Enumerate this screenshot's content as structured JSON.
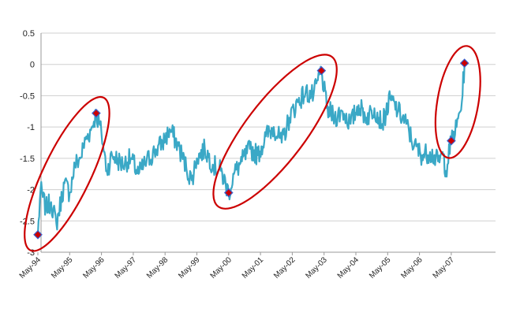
{
  "chart_data": {
    "type": "line",
    "title": "",
    "xlabel": "",
    "ylabel": "",
    "ylim": [
      -3,
      0.5
    ],
    "y_ticks": [
      "0.5",
      "0",
      "-0.5",
      "-1",
      "-1.5",
      "-2",
      "-2.5",
      "-3"
    ],
    "y_tick_values": [
      0.5,
      0,
      -0.5,
      -1,
      -1.5,
      -2,
      -2.5,
      -3
    ],
    "x_tick_labels": [
      "May-94",
      "May-95",
      "May-96",
      "May-97",
      "May-98",
      "May-99",
      "May-00",
      "May-01",
      "May-02",
      "May-03",
      "May-04",
      "May-05",
      "May-06",
      "May-07"
    ],
    "grid": "horizontal",
    "legend": "none",
    "colors": {
      "line": "#3aa8c6",
      "marker_fill": "#cc0000",
      "marker_stroke": "#3a5fcd",
      "ellipse": "#cc0000",
      "grid": "#cfcfcf"
    },
    "series": [
      {
        "values_anchor": [
          [
            "1994-05",
            -2.72
          ],
          [
            "1994-06",
            -2.0
          ],
          [
            "1994-08",
            -2.3
          ],
          [
            "1994-10",
            -2.2
          ],
          [
            "1994-12",
            -2.55
          ],
          [
            "1995-03",
            -1.9
          ],
          [
            "1995-05",
            -2.05
          ],
          [
            "1995-07",
            -1.6
          ],
          [
            "1995-09",
            -1.5
          ],
          [
            "1995-11",
            -1.2
          ],
          [
            "1996-01",
            -1.05
          ],
          [
            "1996-03",
            -0.78
          ],
          [
            "1996-05",
            -1.1
          ],
          [
            "1996-07",
            -1.7
          ],
          [
            "1996-09",
            -1.45
          ],
          [
            "1997-01",
            -1.6
          ],
          [
            "1997-04",
            -1.5
          ],
          [
            "1997-07",
            -1.75
          ],
          [
            "1997-10",
            -1.55
          ],
          [
            "1998-01",
            -1.4
          ],
          [
            "1998-04",
            -1.25
          ],
          [
            "1998-07",
            -1.05
          ],
          [
            "1998-10",
            -1.3
          ],
          [
            "1999-01",
            -1.65
          ],
          [
            "1999-03",
            -1.85
          ],
          [
            "1999-05",
            -1.5
          ],
          [
            "1999-08",
            -1.35
          ],
          [
            "1999-11",
            -1.6
          ],
          [
            "2000-02",
            -1.7
          ],
          [
            "2000-05",
            -2.05
          ],
          [
            "2000-07",
            -1.75
          ],
          [
            "2000-10",
            -1.55
          ],
          [
            "2001-01",
            -1.35
          ],
          [
            "2001-04",
            -1.45
          ],
          [
            "2001-07",
            -1.15
          ],
          [
            "2001-10",
            -1.0
          ],
          [
            "2002-01",
            -1.25
          ],
          [
            "2002-04",
            -0.85
          ],
          [
            "2002-07",
            -0.6
          ],
          [
            "2002-10",
            -0.45
          ],
          [
            "2003-01",
            -0.5
          ],
          [
            "2003-04",
            -0.1
          ],
          [
            "2003-06",
            -0.7
          ],
          [
            "2003-09",
            -0.85
          ],
          [
            "2003-12",
            -0.75
          ],
          [
            "2004-03",
            -0.95
          ],
          [
            "2004-06",
            -0.65
          ],
          [
            "2004-09",
            -0.85
          ],
          [
            "2004-12",
            -0.7
          ],
          [
            "2005-03",
            -0.95
          ],
          [
            "2005-06",
            -0.55
          ],
          [
            "2005-09",
            -0.75
          ],
          [
            "2005-12",
            -0.95
          ],
          [
            "2006-03",
            -1.3
          ],
          [
            "2006-06",
            -1.45
          ],
          [
            "2006-09",
            -1.4
          ],
          [
            "2006-12",
            -1.55
          ],
          [
            "2007-02",
            -1.45
          ],
          [
            "2007-03",
            -1.7
          ],
          [
            "2007-05",
            -1.22
          ],
          [
            "2007-07",
            -1.0
          ],
          [
            "2007-09",
            -0.6
          ],
          [
            "2007-10",
            0.02
          ]
        ]
      }
    ],
    "markers": [
      {
        "date": "1994-05",
        "y": -2.72
      },
      {
        "date": "1996-03",
        "y": -0.78
      },
      {
        "date": "2000-05",
        "y": -2.05
      },
      {
        "date": "2003-04",
        "y": -0.1
      },
      {
        "date": "2007-05",
        "y": -1.22
      },
      {
        "date": "2007-10",
        "y": 0.02
      }
    ]
  }
}
